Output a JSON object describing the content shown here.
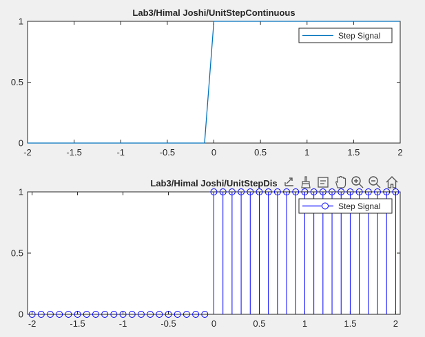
{
  "chart_data": [
    {
      "type": "line",
      "title": "Lab3/Himal Joshi/UnitStepContinuous",
      "xlim": [
        -2,
        2
      ],
      "ylim": [
        0,
        1
      ],
      "xticks": [
        "-2",
        "-1.5",
        "-1",
        "-0.5",
        "0",
        "0.5",
        "1",
        "1.5",
        "2"
      ],
      "yticks": [
        "0",
        "0.5",
        "1"
      ],
      "legend": {
        "position": "top-right"
      },
      "series": [
        {
          "name": "Step Signal",
          "color": "#0072bd",
          "x": [
            -2,
            -0.1,
            0,
            2
          ],
          "y": [
            0,
            0,
            1,
            1
          ]
        }
      ]
    },
    {
      "type": "stem",
      "title": "Lab3/Himal Joshi/UnitStepDis",
      "xlim": [
        -2.05,
        2.05
      ],
      "ylim": [
        0,
        1
      ],
      "xticks": [
        "-2",
        "-1.5",
        "-1",
        "-0.5",
        "0",
        "0.5",
        "1",
        "1.5",
        "2"
      ],
      "yticks": [
        "0",
        "0.5",
        "1"
      ],
      "legend": {
        "position": "top-right"
      },
      "series": [
        {
          "name": "Step Signal",
          "color": "#0000ff",
          "x": [
            -2,
            -1.9,
            -1.8,
            -1.7,
            -1.6,
            -1.5,
            -1.4,
            -1.3,
            -1.2,
            -1.1,
            -1,
            -0.9,
            -0.8,
            -0.7,
            -0.6,
            -0.5,
            -0.4,
            -0.3,
            -0.2,
            -0.1,
            0,
            0.1,
            0.2,
            0.3,
            0.4,
            0.5,
            0.6,
            0.7,
            0.8,
            0.9,
            1,
            1.1,
            1.2,
            1.3,
            1.4,
            1.5,
            1.6,
            1.7,
            1.8,
            1.9,
            2
          ],
          "y": [
            0,
            0,
            0,
            0,
            0,
            0,
            0,
            0,
            0,
            0,
            0,
            0,
            0,
            0,
            0,
            0,
            0,
            0,
            0,
            0,
            1,
            1,
            1,
            1,
            1,
            1,
            1,
            1,
            1,
            1,
            1,
            1,
            1,
            1,
            1,
            1,
            1,
            1,
            1,
            1,
            1
          ]
        }
      ]
    }
  ],
  "toolbar": {
    "icons": [
      "export-icon",
      "brush-icon",
      "data-tips-icon",
      "pan-icon",
      "zoom-in-icon",
      "zoom-out-icon",
      "home-icon"
    ]
  }
}
